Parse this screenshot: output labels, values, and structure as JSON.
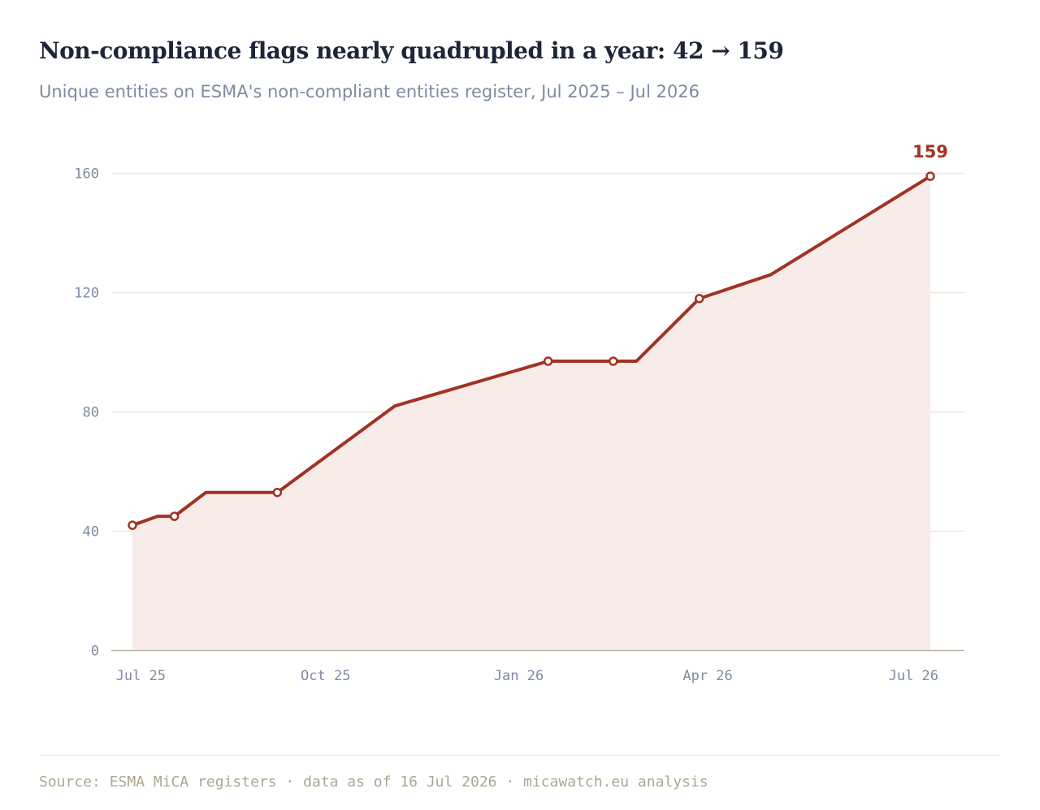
{
  "header": {
    "title": "Non-compliance flags nearly quadrupled in a year: 42 → 159",
    "subtitle": "Unique entities on ESMA's non-compliant entities register, Jul 2025 – Jul 2026"
  },
  "footer": {
    "source": "Source: ESMA MiCA registers · data as of 16 Jul 2026 · micawatch.eu analysis"
  },
  "colors": {
    "line": "#a33222",
    "area": "#f8ece8",
    "grid": "#ece7da",
    "axis": "#b9b2a0",
    "tick_text": "#7d8aa3"
  },
  "chart_data": {
    "type": "area",
    "title": "Non-compliance flags nearly quadrupled in a year: 42 → 159",
    "subtitle": "Unique entities on ESMA's non-compliant entities register, Jul 2025 – Jul 2026",
    "xlabel": "",
    "ylabel": "",
    "xlim": [
      "2025-07-01",
      "2026-07-31"
    ],
    "ylim": [
      0,
      170
    ],
    "x_ticks": [
      {
        "date": "2025-07-05",
        "label": "Jul 25"
      },
      {
        "date": "2025-10-01",
        "label": "Oct 25"
      },
      {
        "date": "2026-01-01",
        "label": "Jan 26"
      },
      {
        "date": "2026-04-01",
        "label": "Apr 26"
      },
      {
        "date": "2026-07-08",
        "label": "Jul 26"
      }
    ],
    "y_ticks": [
      0,
      40,
      80,
      120,
      160
    ],
    "grid": true,
    "series": [
      {
        "points": [
          {
            "x": "2025-07-01",
            "y": 42,
            "marker": true
          },
          {
            "x": "2025-07-13",
            "y": 45,
            "marker": false
          },
          {
            "x": "2025-07-21",
            "y": 45,
            "marker": true
          },
          {
            "x": "2025-08-05",
            "y": 53,
            "marker": false
          },
          {
            "x": "2025-09-08",
            "y": 53,
            "marker": true
          },
          {
            "x": "2025-11-03",
            "y": 82,
            "marker": false
          },
          {
            "x": "2026-01-15",
            "y": 97,
            "marker": true
          },
          {
            "x": "2026-02-15",
            "y": 97,
            "marker": true
          },
          {
            "x": "2026-02-26",
            "y": 97,
            "marker": false
          },
          {
            "x": "2026-03-28",
            "y": 118,
            "marker": true
          },
          {
            "x": "2026-05-01",
            "y": 126,
            "marker": false
          },
          {
            "x": "2026-07-16",
            "y": 159,
            "marker": true
          }
        ]
      }
    ],
    "end_label": "159"
  }
}
